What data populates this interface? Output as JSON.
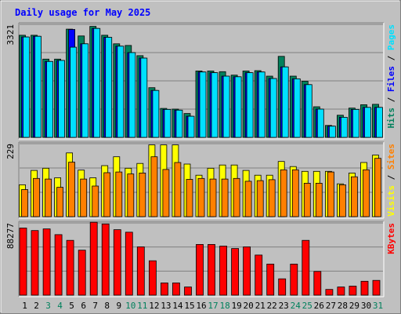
{
  "chart_data": [
    {
      "type": "bar",
      "title": "Daily usage for May 2025",
      "ymax_label": "3321",
      "ymax": 3321,
      "legend": [
        "Pages",
        "Files",
        "Hits"
      ],
      "colors": {
        "Hits": "#00805c",
        "Files": "#0000ff",
        "Pages": "#00e0ff"
      },
      "categories": [
        "1",
        "2",
        "3",
        "4",
        "5",
        "6",
        "7",
        "8",
        "9",
        "10",
        "11",
        "12",
        "13",
        "14",
        "15",
        "16",
        "17",
        "18",
        "19",
        "20",
        "21",
        "22",
        "23",
        "24",
        "25",
        "26",
        "27",
        "28",
        "29",
        "30",
        "31"
      ],
      "series": [
        {
          "name": "Hits",
          "values": [
            3000,
            3000,
            2300,
            2300,
            3180,
            2980,
            3260,
            3000,
            2750,
            2700,
            2400,
            1460,
            850,
            830,
            700,
            1950,
            1950,
            1930,
            1830,
            1950,
            1960,
            1800,
            2380,
            1800,
            1650,
            900,
            350,
            650,
            860,
            960,
            970
          ]
        },
        {
          "name": "Files",
          "values": [
            2950,
            2970,
            2230,
            2260,
            3170,
            2750,
            3200,
            2940,
            2680,
            2490,
            2330,
            1380,
            820,
            800,
            620,
            1920,
            1900,
            1800,
            1780,
            1900,
            1920,
            1730,
            2070,
            1720,
            1550,
            830,
            330,
            590,
            820,
            880,
            880
          ]
        },
        {
          "name": "Pages",
          "values": [
            2950,
            2970,
            2230,
            2260,
            2650,
            2750,
            3200,
            2940,
            2680,
            2490,
            2330,
            1380,
            820,
            800,
            620,
            1920,
            1900,
            1800,
            1780,
            1900,
            1920,
            1730,
            2070,
            1720,
            1550,
            830,
            330,
            590,
            820,
            880,
            880
          ]
        }
      ]
    },
    {
      "type": "bar",
      "ymax_label": "229",
      "ymax": 229,
      "legend": [
        "Sites",
        "Visits"
      ],
      "colors": {
        "Visits": "#ffff00",
        "Sites": "#ff8000"
      },
      "categories": [
        "1",
        "2",
        "3",
        "4",
        "5",
        "6",
        "7",
        "8",
        "9",
        "10",
        "11",
        "12",
        "13",
        "14",
        "15",
        "16",
        "17",
        "18",
        "19",
        "20",
        "21",
        "22",
        "23",
        "24",
        "25",
        "26",
        "27",
        "28",
        "29",
        "30",
        "31"
      ],
      "series": [
        {
          "name": "Visits",
          "values": [
            100,
            145,
            152,
            122,
            200,
            146,
            122,
            160,
            188,
            152,
            167,
            225,
            225,
            225,
            165,
            130,
            152,
            162,
            162,
            145,
            130,
            130,
            173,
            157,
            142,
            142,
            142,
            103,
            137,
            170,
            193
          ]
        },
        {
          "name": "Sites",
          "values": [
            85,
            120,
            118,
            92,
            171,
            118,
            96,
            138,
            140,
            134,
            137,
            188,
            148,
            170,
            117,
            120,
            118,
            118,
            120,
            111,
            113,
            116,
            147,
            147,
            105,
            105,
            140,
            100,
            125,
            147,
            183
          ]
        }
      ]
    },
    {
      "type": "bar",
      "ymax_label": "88277",
      "ymax": 88277,
      "legend": [
        "KBytes"
      ],
      "colors": {
        "KBytes": "#ff0000"
      },
      "categories": [
        "1",
        "2",
        "3",
        "4",
        "5",
        "6",
        "7",
        "8",
        "9",
        "10",
        "11",
        "12",
        "13",
        "14",
        "15",
        "16",
        "17",
        "18",
        "19",
        "20",
        "21",
        "22",
        "23",
        "24",
        "25",
        "26",
        "27",
        "28",
        "29",
        "30",
        "31"
      ],
      "series": [
        {
          "name": "KBytes",
          "values": [
            82000,
            79000,
            81000,
            74000,
            67000,
            55000,
            89000,
            87000,
            80000,
            77000,
            59000,
            42000,
            15000,
            15000,
            10000,
            62000,
            62000,
            60000,
            57000,
            59000,
            49000,
            38000,
            20000,
            38000,
            67000,
            29000,
            7000,
            10000,
            11000,
            17000,
            18000
          ]
        }
      ]
    }
  ],
  "x_labels": {
    "days": [
      "1",
      "2",
      "3",
      "4",
      "5",
      "6",
      "7",
      "8",
      "9",
      "10",
      "11",
      "12",
      "13",
      "14",
      "15",
      "16",
      "17",
      "18",
      "19",
      "20",
      "21",
      "22",
      "23",
      "24",
      "25",
      "26",
      "27",
      "28",
      "29",
      "30",
      "31"
    ],
    "weekend_days": [
      "3",
      "4",
      "10",
      "11",
      "17",
      "18",
      "24",
      "25",
      "31"
    ],
    "weekday_color": "#000000",
    "weekend_color": "#00805c"
  },
  "theme": {
    "background": "#c0c0c0",
    "title_color": "#0000ff",
    "gridline": "#808080"
  }
}
